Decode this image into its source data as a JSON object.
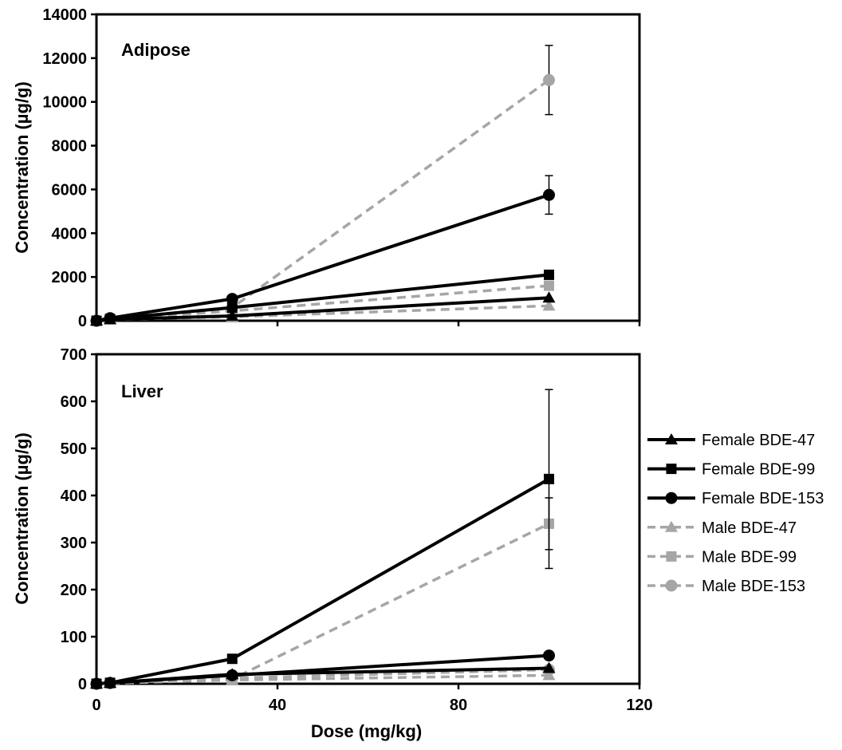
{
  "chart_data": [
    {
      "type": "line",
      "panel_label": "Adipose",
      "xlabel": "",
      "ylabel": "Concentration (µg/g)",
      "xlim": [
        0,
        120
      ],
      "ylim": [
        0,
        14000
      ],
      "x_ticks": [
        0,
        40,
        80,
        120
      ],
      "y_ticks": [
        0,
        2000,
        4000,
        6000,
        8000,
        10000,
        12000,
        14000
      ],
      "show_x_tick_labels": false,
      "x": [
        0,
        3,
        30,
        100
      ],
      "series": [
        {
          "name": "Female BDE-47",
          "sex": "female",
          "marker": "triangle",
          "values": [
            0,
            60,
            220,
            1050
          ]
        },
        {
          "name": "Female BDE-99",
          "sex": "female",
          "marker": "square",
          "values": [
            0,
            80,
            600,
            2100
          ]
        },
        {
          "name": "Female BDE-153",
          "sex": "female",
          "marker": "circle",
          "values": [
            0,
            120,
            1000,
            5750
          ],
          "error": [
            0,
            0,
            0,
            880
          ]
        },
        {
          "name": "Male BDE-47",
          "sex": "male",
          "marker": "triangle",
          "values": [
            0,
            50,
            180,
            680
          ]
        },
        {
          "name": "Male BDE-99",
          "sex": "male",
          "marker": "square",
          "values": [
            0,
            70,
            450,
            1600
          ]
        },
        {
          "name": "Male BDE-153",
          "sex": "male",
          "marker": "circle",
          "values": [
            0,
            100,
            600,
            11000
          ],
          "error": [
            0,
            0,
            0,
            1580
          ]
        }
      ]
    },
    {
      "type": "line",
      "panel_label": "Liver",
      "xlabel": "Dose (mg/kg)",
      "ylabel": "Concentration (µg/g)",
      "xlim": [
        0,
        120
      ],
      "ylim": [
        0,
        700
      ],
      "x_ticks": [
        0,
        40,
        80,
        120
      ],
      "y_ticks": [
        0,
        100,
        200,
        300,
        400,
        500,
        600,
        700
      ],
      "show_x_tick_labels": true,
      "x": [
        0,
        3,
        30,
        100
      ],
      "series": [
        {
          "name": "Female BDE-47",
          "sex": "female",
          "marker": "triangle",
          "values": [
            0,
            2,
            20,
            33
          ]
        },
        {
          "name": "Female BDE-99",
          "sex": "female",
          "marker": "square",
          "values": [
            0,
            2,
            53,
            435
          ],
          "error": [
            0,
            0,
            0,
            190
          ]
        },
        {
          "name": "Female BDE-153",
          "sex": "female",
          "marker": "circle",
          "values": [
            0,
            2,
            18,
            60
          ]
        },
        {
          "name": "Male BDE-47",
          "sex": "male",
          "marker": "triangle",
          "values": [
            0,
            1,
            8,
            18
          ]
        },
        {
          "name": "Male BDE-99",
          "sex": "male",
          "marker": "square",
          "values": [
            0,
            1,
            10,
            340
          ],
          "error": [
            0,
            0,
            0,
            55
          ]
        },
        {
          "name": "Male BDE-153",
          "sex": "male",
          "marker": "circle",
          "values": [
            0,
            1,
            12,
            30
          ]
        }
      ]
    }
  ],
  "legend": {
    "placement": "right of lower panel",
    "items": [
      {
        "label": "Female BDE-47",
        "sex": "female",
        "marker": "triangle"
      },
      {
        "label": "Female BDE-99",
        "sex": "female",
        "marker": "square"
      },
      {
        "label": "Female BDE-153",
        "sex": "female",
        "marker": "circle"
      },
      {
        "label": "Male BDE-47",
        "sex": "male",
        "marker": "triangle"
      },
      {
        "label": "Male BDE-99",
        "sex": "male",
        "marker": "square"
      },
      {
        "label": "Male BDE-153",
        "sex": "male",
        "marker": "circle"
      }
    ]
  },
  "colors": {
    "female": "#000000",
    "male": "#a6a6a6",
    "axis": "#000000",
    "background": "#ffffff"
  }
}
